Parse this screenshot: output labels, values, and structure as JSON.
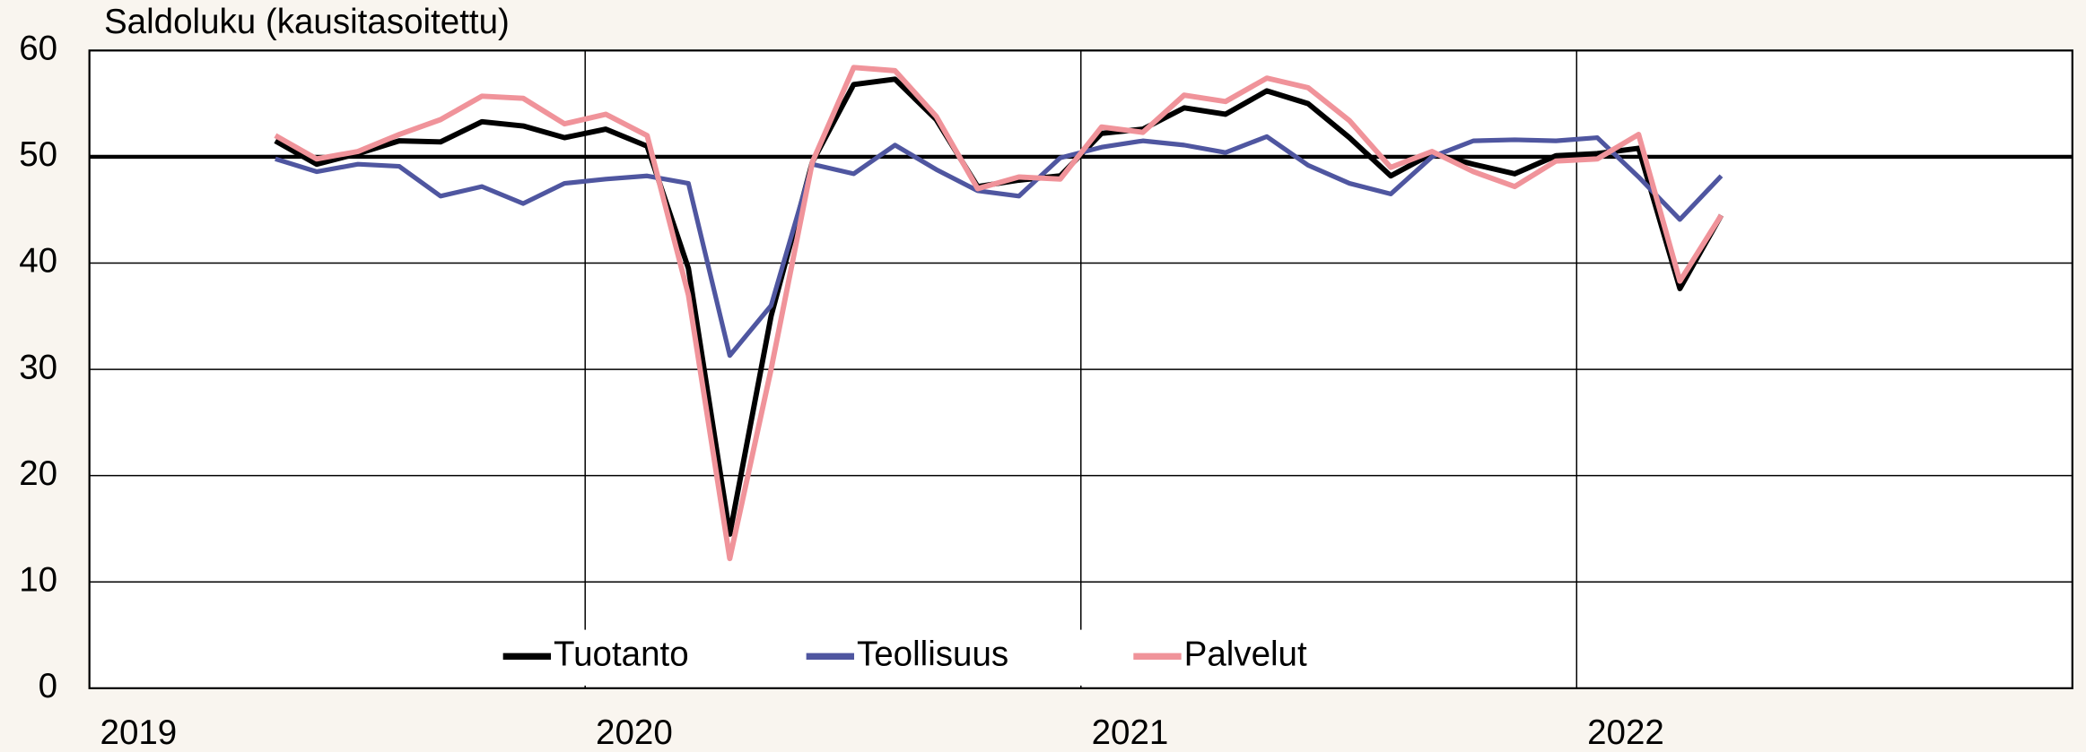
{
  "chart_data": {
    "type": "line",
    "title": "Saldoluku (kausitasoitettu)",
    "x": [
      2019.375,
      2019.4583,
      2019.5417,
      2019.625,
      2019.7083,
      2019.7917,
      2019.875,
      2019.9583,
      2020.0417,
      2020.125,
      2020.2083,
      2020.2917,
      2020.375,
      2020.4583,
      2020.5417,
      2020.625,
      2020.7083,
      2020.7917,
      2020.875,
      2020.9583,
      2021.0417,
      2021.125,
      2021.2083,
      2021.2917,
      2021.375,
      2021.4583,
      2021.5417,
      2021.625,
      2021.7083,
      2021.7917,
      2021.875,
      2021.9583,
      2022.0417,
      2022.125,
      2022.2083,
      2022.2917
    ],
    "series": [
      {
        "name": "Tuotanto",
        "color": "#000000",
        "width": 4,
        "values": [
          51.5,
          49.3,
          50.3,
          51.5,
          51.4,
          53.3,
          52.9,
          51.8,
          52.6,
          51.0,
          39.5,
          14.5,
          35.0,
          49.5,
          56.8,
          57.3,
          53.5,
          47.2,
          47.8,
          48.2,
          52.2,
          52.6,
          54.6,
          54.0,
          56.2,
          55.0,
          51.8,
          48.2,
          50.3,
          49.3,
          48.4,
          50.1,
          50.3,
          50.8,
          37.6,
          44.5
        ]
      },
      {
        "name": "Teollisuus",
        "color": "#4f56a0",
        "width": 3.5,
        "values": [
          49.8,
          48.6,
          49.3,
          49.1,
          46.3,
          47.2,
          45.6,
          47.5,
          47.9,
          48.2,
          47.5,
          31.3,
          36.0,
          49.3,
          48.4,
          51.1,
          48.8,
          46.8,
          46.3,
          49.9,
          50.9,
          51.5,
          51.1,
          50.4,
          51.9,
          49.2,
          47.5,
          46.5,
          50.0,
          51.5,
          51.6,
          51.5,
          51.8,
          48.1,
          44.1,
          48.2
        ]
      },
      {
        "name": "Palvelut",
        "color": "#f0939a",
        "width": 4,
        "values": [
          52.0,
          49.8,
          50.5,
          52.1,
          53.5,
          55.7,
          55.5,
          53.1,
          54.0,
          52.0,
          37.0,
          12.2,
          30.0,
          49.5,
          58.4,
          58.1,
          53.8,
          47.0,
          48.1,
          47.9,
          52.8,
          52.3,
          55.8,
          55.2,
          57.4,
          56.5,
          53.4,
          49.0,
          50.5,
          48.6,
          47.2,
          49.6,
          49.8,
          52.1,
          38.3,
          44.5
        ]
      }
    ],
    "xlim": [
      2019,
      2023
    ],
    "xticks": [
      2019,
      2020,
      2021,
      2022
    ],
    "ylim": [
      0,
      60
    ],
    "yticks": [
      0,
      10,
      20,
      30,
      40,
      50,
      60
    ],
    "hline": 50,
    "grid": true,
    "legend": "bottom"
  }
}
